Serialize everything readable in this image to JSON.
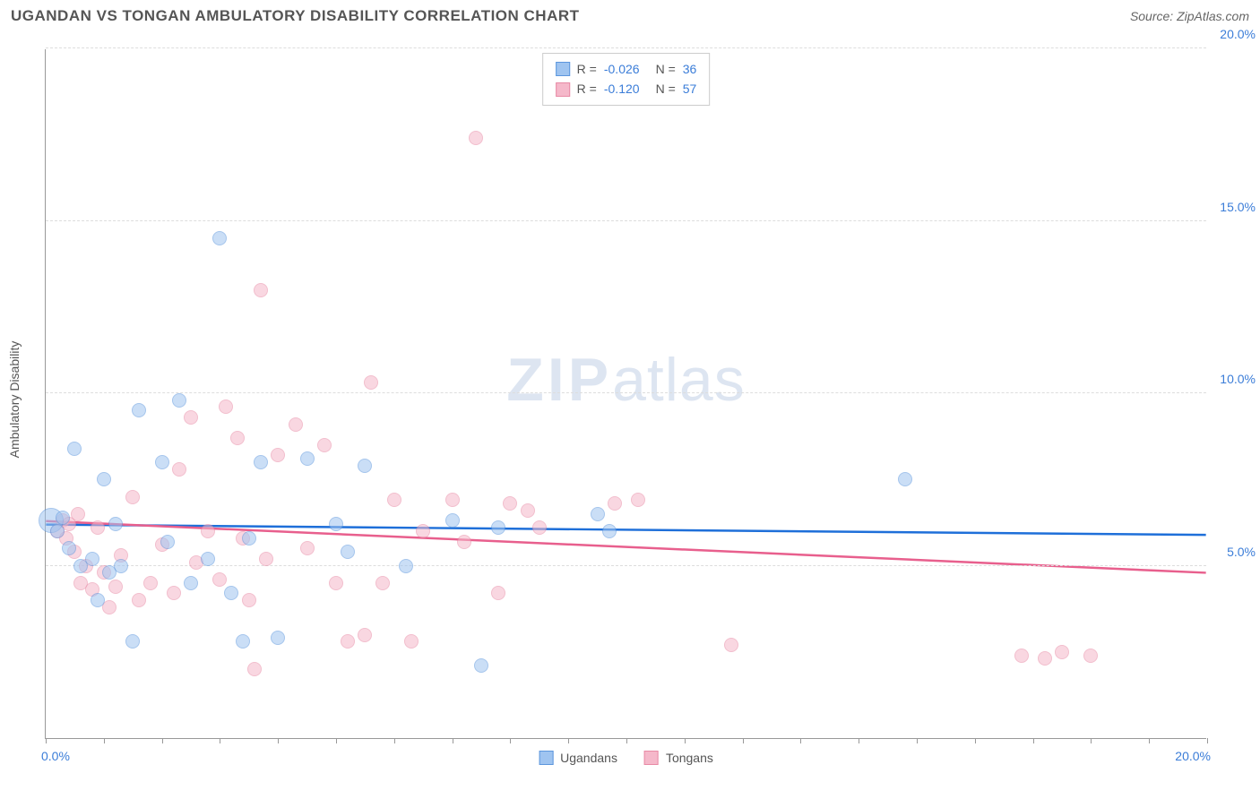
{
  "header": {
    "title": "UGANDAN VS TONGAN AMBULATORY DISABILITY CORRELATION CHART",
    "source": "Source: ZipAtlas.com"
  },
  "chart": {
    "type": "scatter",
    "y_axis_label": "Ambulatory Disability",
    "x_range": [
      0,
      20
    ],
    "y_range": [
      0,
      20
    ],
    "x_tick_labels": {
      "min": "0.0%",
      "max": "20.0%"
    },
    "y_ticks": [
      5,
      10,
      15,
      20
    ],
    "y_tick_labels": [
      "5.0%",
      "10.0%",
      "15.0%",
      "20.0%"
    ],
    "x_minor_ticks": [
      0,
      1,
      2,
      3,
      4,
      5,
      6,
      7,
      8,
      9,
      10,
      11,
      12,
      13,
      14,
      15,
      16,
      17,
      18,
      19,
      20
    ],
    "background_color": "#ffffff",
    "grid_color": "#dddddd",
    "axis_color": "#999999",
    "label_color": "#3b7dd8",
    "point_radius": 8,
    "point_opacity": 0.55,
    "watermark_text_bold": "ZIP",
    "watermark_text_light": "atlas",
    "series": {
      "ugandans": {
        "label": "Ugandans",
        "fill_color": "#9fc4f0",
        "stroke_color": "#5c96dd",
        "trend_color": "#1e6fd9",
        "R": "-0.026",
        "N": "36",
        "trend": {
          "x1": 0,
          "y1": 6.2,
          "x2": 20,
          "y2": 5.9
        },
        "points": [
          {
            "x": 0.1,
            "y": 6.3,
            "r": 14
          },
          {
            "x": 0.2,
            "y": 6.0
          },
          {
            "x": 0.3,
            "y": 6.4
          },
          {
            "x": 0.4,
            "y": 5.5
          },
          {
            "x": 0.5,
            "y": 8.4
          },
          {
            "x": 0.6,
            "y": 5.0
          },
          {
            "x": 0.8,
            "y": 5.2
          },
          {
            "x": 0.9,
            "y": 4.0
          },
          {
            "x": 1.0,
            "y": 7.5
          },
          {
            "x": 1.1,
            "y": 4.8
          },
          {
            "x": 1.2,
            "y": 6.2
          },
          {
            "x": 1.3,
            "y": 5.0
          },
          {
            "x": 1.5,
            "y": 2.8
          },
          {
            "x": 1.6,
            "y": 9.5
          },
          {
            "x": 2.0,
            "y": 8.0
          },
          {
            "x": 2.1,
            "y": 5.7
          },
          {
            "x": 2.3,
            "y": 9.8
          },
          {
            "x": 2.5,
            "y": 4.5
          },
          {
            "x": 2.8,
            "y": 5.2
          },
          {
            "x": 3.0,
            "y": 14.5
          },
          {
            "x": 3.2,
            "y": 4.2
          },
          {
            "x": 3.4,
            "y": 2.8
          },
          {
            "x": 3.5,
            "y": 5.8
          },
          {
            "x": 3.7,
            "y": 8.0
          },
          {
            "x": 4.0,
            "y": 2.9
          },
          {
            "x": 4.5,
            "y": 8.1
          },
          {
            "x": 5.0,
            "y": 6.2
          },
          {
            "x": 5.2,
            "y": 5.4
          },
          {
            "x": 5.5,
            "y": 7.9
          },
          {
            "x": 6.2,
            "y": 5.0
          },
          {
            "x": 7.0,
            "y": 6.3
          },
          {
            "x": 7.5,
            "y": 2.1
          },
          {
            "x": 7.8,
            "y": 6.1
          },
          {
            "x": 9.5,
            "y": 6.5
          },
          {
            "x": 9.7,
            "y": 6.0
          },
          {
            "x": 14.8,
            "y": 7.5
          }
        ]
      },
      "tongans": {
        "label": "Tongans",
        "fill_color": "#f5b8ca",
        "stroke_color": "#e88aa5",
        "trend_color": "#e85f8d",
        "R": "-0.120",
        "N": "57",
        "trend": {
          "x1": 0,
          "y1": 6.3,
          "x2": 20,
          "y2": 4.8
        },
        "points": [
          {
            "x": 0.2,
            "y": 6.0
          },
          {
            "x": 0.3,
            "y": 6.3
          },
          {
            "x": 0.35,
            "y": 5.8
          },
          {
            "x": 0.4,
            "y": 6.2
          },
          {
            "x": 0.5,
            "y": 5.4
          },
          {
            "x": 0.55,
            "y": 6.5
          },
          {
            "x": 0.6,
            "y": 4.5
          },
          {
            "x": 0.7,
            "y": 5.0
          },
          {
            "x": 0.8,
            "y": 4.3
          },
          {
            "x": 0.9,
            "y": 6.1
          },
          {
            "x": 1.0,
            "y": 4.8
          },
          {
            "x": 1.1,
            "y": 3.8
          },
          {
            "x": 1.2,
            "y": 4.4
          },
          {
            "x": 1.3,
            "y": 5.3
          },
          {
            "x": 1.5,
            "y": 7.0
          },
          {
            "x": 1.6,
            "y": 4.0
          },
          {
            "x": 1.8,
            "y": 4.5
          },
          {
            "x": 2.0,
            "y": 5.6
          },
          {
            "x": 2.2,
            "y": 4.2
          },
          {
            "x": 2.3,
            "y": 7.8
          },
          {
            "x": 2.5,
            "y": 9.3
          },
          {
            "x": 2.6,
            "y": 5.1
          },
          {
            "x": 2.8,
            "y": 6.0
          },
          {
            "x": 3.0,
            "y": 4.6
          },
          {
            "x": 3.1,
            "y": 9.6
          },
          {
            "x": 3.3,
            "y": 8.7
          },
          {
            "x": 3.4,
            "y": 5.8
          },
          {
            "x": 3.5,
            "y": 4.0
          },
          {
            "x": 3.6,
            "y": 2.0
          },
          {
            "x": 3.7,
            "y": 13.0
          },
          {
            "x": 3.8,
            "y": 5.2
          },
          {
            "x": 4.0,
            "y": 8.2
          },
          {
            "x": 4.3,
            "y": 9.1
          },
          {
            "x": 4.5,
            "y": 5.5
          },
          {
            "x": 4.8,
            "y": 8.5
          },
          {
            "x": 5.0,
            "y": 4.5
          },
          {
            "x": 5.2,
            "y": 2.8
          },
          {
            "x": 5.5,
            "y": 3.0
          },
          {
            "x": 5.6,
            "y": 10.3
          },
          {
            "x": 5.8,
            "y": 4.5
          },
          {
            "x": 6.0,
            "y": 6.9
          },
          {
            "x": 6.3,
            "y": 2.8
          },
          {
            "x": 6.5,
            "y": 6.0
          },
          {
            "x": 7.0,
            "y": 6.9
          },
          {
            "x": 7.2,
            "y": 5.7
          },
          {
            "x": 7.4,
            "y": 17.4
          },
          {
            "x": 7.8,
            "y": 4.2
          },
          {
            "x": 8.0,
            "y": 6.8
          },
          {
            "x": 8.3,
            "y": 6.6
          },
          {
            "x": 8.5,
            "y": 6.1
          },
          {
            "x": 9.8,
            "y": 6.8
          },
          {
            "x": 10.2,
            "y": 6.9
          },
          {
            "x": 11.8,
            "y": 2.7
          },
          {
            "x": 16.8,
            "y": 2.4
          },
          {
            "x": 17.2,
            "y": 2.3
          },
          {
            "x": 17.5,
            "y": 2.5
          },
          {
            "x": 18.0,
            "y": 2.4
          }
        ]
      }
    }
  }
}
